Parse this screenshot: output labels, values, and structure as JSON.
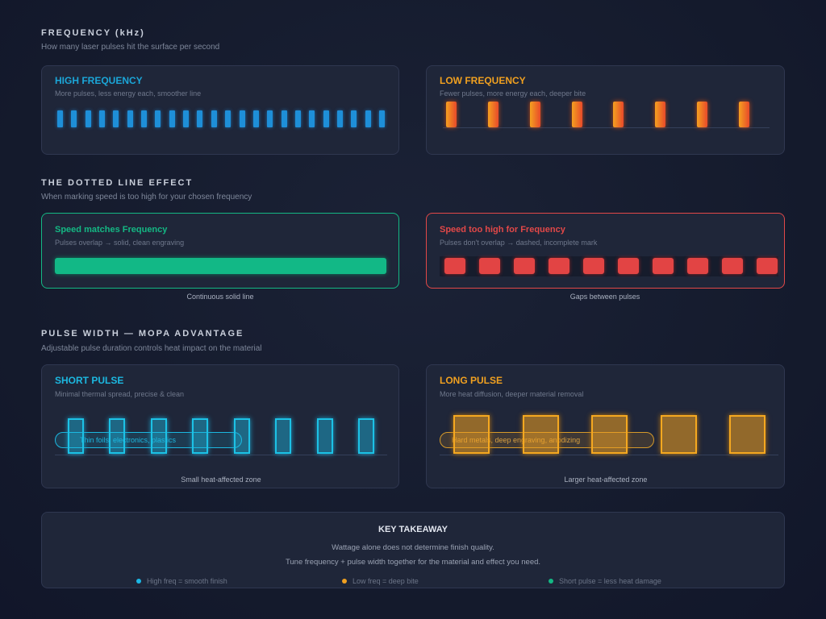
{
  "frequency": {
    "title": "FREQUENCY (kHz)",
    "subtitle": "How many laser pulses hit the surface per second",
    "high": {
      "title": "HIGH FREQUENCY",
      "desc": "More pulses, less energy each, smoother line",
      "color": "#1ba6d8"
    },
    "low": {
      "title": "LOW FREQUENCY",
      "desc": "Fewer pulses, more energy each, deeper bite",
      "color": "#f0a020"
    }
  },
  "dotted": {
    "title": "THE DOTTED LINE EFFECT",
    "subtitle": "When marking speed is too high for your chosen frequency",
    "match": {
      "title": "Speed matches Frequency",
      "desc": "Pulses overlap → solid, clean engraving",
      "caption": "Continuous solid line",
      "color": "#14b884"
    },
    "toohigh": {
      "title": "Speed too high for Frequency",
      "desc": "Pulses don't overlap → dashed, incomplete mark",
      "caption": "Gaps between pulses",
      "color": "#e24848"
    }
  },
  "pulse_width": {
    "title": "PULSE WIDTH — MOPA ADVANTAGE",
    "subtitle": "Adjustable pulse duration controls heat impact on the material",
    "short": {
      "title": "SHORT PULSE",
      "desc": "Minimal thermal spread, precise & clean",
      "tag": "Thin foils, electronics, plastics",
      "caption": "Small heat-affected zone",
      "color": "#1cc2e6"
    },
    "long": {
      "title": "LONG PULSE",
      "desc": "More heat diffusion, deeper material removal",
      "tag": "Hard metals, deep engraving, anodizing",
      "caption": "Larger heat-affected zone",
      "color": "#f0a020"
    }
  },
  "takeaway": {
    "title": "KEY TAKEAWAY",
    "line1": "Wattage alone does not determine finish quality.",
    "line2": "Tune frequency + pulse width together for the material and effect you need.",
    "legend": [
      {
        "label": "High freq = smooth finish",
        "color": "#1cb8e6"
      },
      {
        "label": "Low freq = deep bite",
        "color": "#f0a020"
      },
      {
        "label": "Short pulse = less heat damage",
        "color": "#14b884"
      }
    ]
  }
}
